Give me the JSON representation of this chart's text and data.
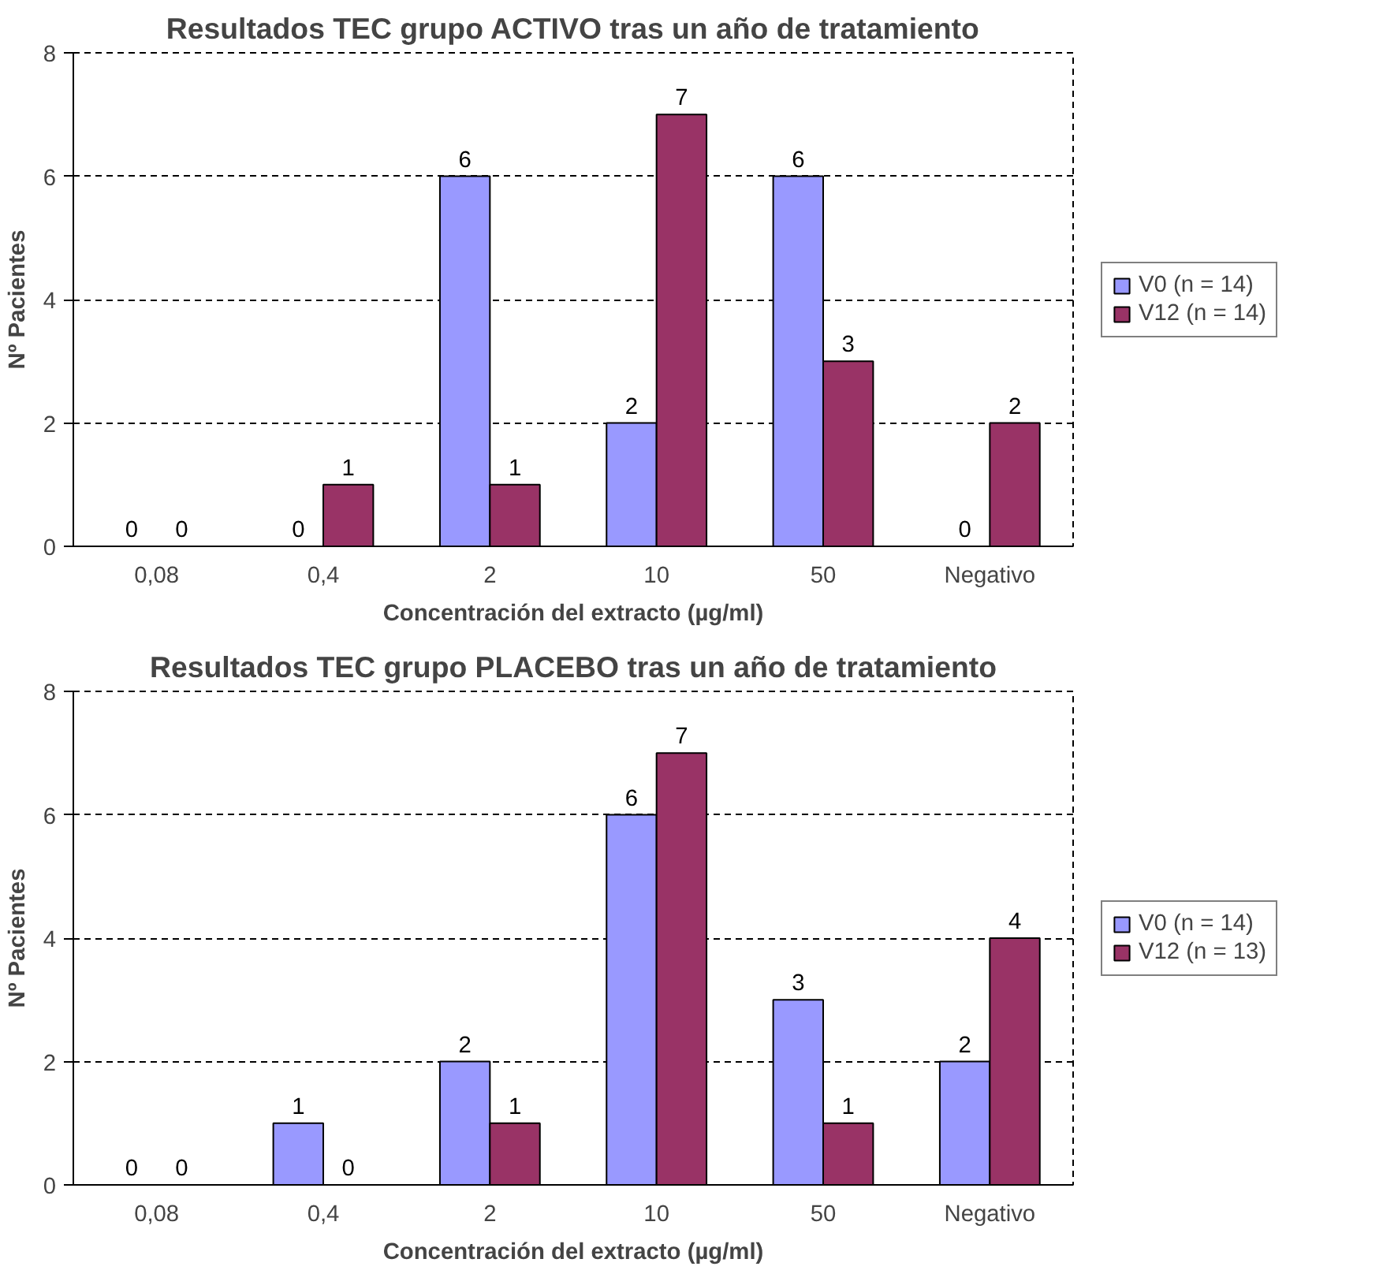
{
  "chart_data": [
    {
      "type": "bar",
      "title": "Resultados TEC grupo ACTIVO tras un año de tratamiento",
      "xlabel": "Concentración del extracto (µg/ml)",
      "ylabel": "Nº Pacientes",
      "categories": [
        "0,08",
        "0,4",
        "2",
        "10",
        "50",
        "Negativo"
      ],
      "series": [
        {
          "name": "V0 (n = 14)",
          "color": "#9999ff",
          "values": [
            0,
            0,
            6,
            2,
            6,
            0
          ]
        },
        {
          "name": "V12 (n = 14)",
          "color": "#993366",
          "values": [
            0,
            1,
            1,
            7,
            3,
            2
          ]
        }
      ],
      "ylim": [
        0,
        8
      ],
      "yticks": [
        0,
        2,
        4,
        6,
        8
      ],
      "grid": "y",
      "legend": "right",
      "data_labels": true
    },
    {
      "type": "bar",
      "title": "Resultados TEC grupo PLACEBO tras un año de tratamiento",
      "xlabel": "Concentración del extracto (µg/ml)",
      "ylabel": "Nº Pacientes",
      "categories": [
        "0,08",
        "0,4",
        "2",
        "10",
        "50",
        "Negativo"
      ],
      "series": [
        {
          "name": "V0 (n = 14)",
          "color": "#9999ff",
          "values": [
            0,
            1,
            2,
            6,
            3,
            2
          ]
        },
        {
          "name": "V12 (n = 13)",
          "color": "#993366",
          "values": [
            0,
            0,
            1,
            7,
            1,
            4
          ]
        }
      ],
      "ylim": [
        0,
        8
      ],
      "yticks": [
        0,
        2,
        4,
        6,
        8
      ],
      "grid": "y",
      "legend": "right",
      "data_labels": true
    }
  ]
}
